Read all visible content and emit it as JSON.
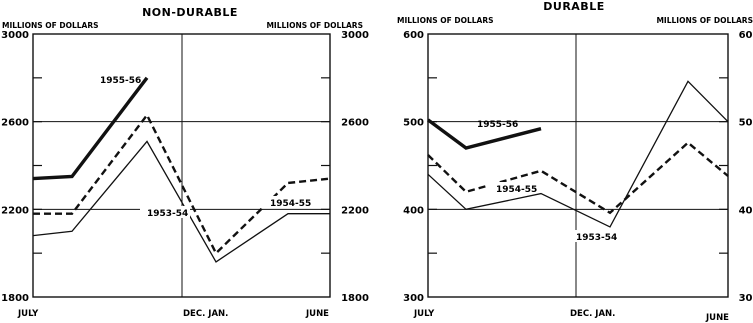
{
  "chart_data": [
    {
      "type": "line",
      "title": "NON-DURABLE",
      "y_unit_left": "MILLIONS OF DOLLARS",
      "y_unit_right": "MILLIONS OF DOLLARS",
      "ylim": [
        1800,
        3000
      ],
      "yticks": [
        1800,
        2200,
        2600,
        3000
      ],
      "x_tick_labels": [
        "JULY",
        "DEC. JAN.",
        "JUNE"
      ],
      "grid": true,
      "series": [
        {
          "name": "1955-56",
          "style": "thick",
          "x": [
            0,
            1,
            3
          ],
          "y": [
            2340,
            2350,
            2800
          ]
        },
        {
          "name": "1954-55",
          "style": "dashed",
          "x": [
            0,
            1,
            3,
            5,
            6,
            7,
            8
          ],
          "y": [
            2180,
            2180,
            2630,
            2000,
            2160,
            2320,
            2340
          ]
        },
        {
          "name": "1953-54",
          "style": "thin",
          "x": [
            0,
            1,
            3,
            5,
            6,
            7,
            8
          ],
          "y": [
            2080,
            2100,
            2510,
            1960,
            2070,
            2180,
            2180
          ]
        }
      ]
    },
    {
      "type": "line",
      "title": "DURABLE",
      "y_unit_left": "MILLIONS OF DOLLARS",
      "y_unit_right": "MILLIONS OF DOLLARS",
      "ylim": [
        300,
        600
      ],
      "yticks": [
        300,
        400,
        500,
        600
      ],
      "x_tick_labels": [
        "JULY",
        "DEC. JAN.",
        "JUNE"
      ],
      "grid": true,
      "series": [
        {
          "name": "1955-56",
          "style": "thick",
          "x": [
            0,
            1,
            3
          ],
          "y": [
            502,
            470,
            492
          ]
        },
        {
          "name": "1954-55",
          "style": "dashed",
          "x": [
            0,
            1,
            3,
            5,
            7,
            8
          ],
          "y": [
            462,
            420,
            444,
            396,
            476,
            438
          ]
        },
        {
          "name": "1953-54",
          "style": "thin",
          "x": [
            0,
            1,
            3,
            5,
            7,
            8
          ],
          "y": [
            440,
            400,
            418,
            380,
            546,
            500
          ]
        }
      ]
    }
  ]
}
